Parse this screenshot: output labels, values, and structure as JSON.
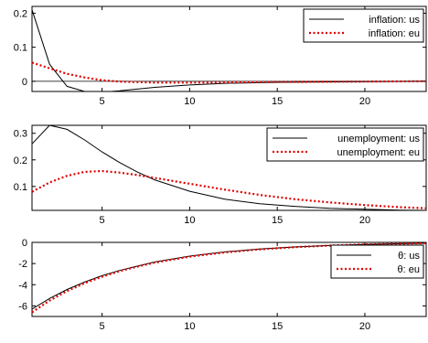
{
  "chart_data": [
    {
      "type": "line",
      "xlim": [
        1,
        23.5
      ],
      "ylim": [
        -0.03,
        0.22
      ],
      "xticks": [
        5,
        10,
        15,
        20
      ],
      "yticks": [
        0,
        0.1,
        0.2
      ],
      "ytick_labels": [
        "0",
        "0.1",
        "0.2"
      ],
      "zero_line": true,
      "legend": "top-right",
      "series": [
        {
          "name": "inflation: us",
          "color": "#000000",
          "style": "solid",
          "x": [
            1,
            2,
            3,
            4,
            5,
            6,
            8,
            10,
            12,
            15,
            20,
            23.5
          ],
          "values": [
            0.21,
            0.05,
            -0.015,
            -0.03,
            -0.032,
            -0.028,
            -0.018,
            -0.011,
            -0.006,
            -0.003,
            -0.001,
            0
          ]
        },
        {
          "name": "inflation: eu",
          "color": "#e00000",
          "style": "dotted",
          "x": [
            1,
            2,
            3,
            4,
            5,
            6,
            8,
            10,
            12,
            15,
            20,
            23.5
          ],
          "values": [
            0.055,
            0.038,
            0.022,
            0.011,
            0.003,
            -0.001,
            -0.004,
            -0.004,
            -0.003,
            -0.002,
            -0.001,
            0
          ]
        }
      ]
    },
    {
      "type": "line",
      "xlim": [
        1,
        23.5
      ],
      "ylim": [
        0.01,
        0.33
      ],
      "xticks": [
        5,
        10,
        15,
        20
      ],
      "yticks": [
        0.1,
        0.2,
        0.3
      ],
      "ytick_labels": [
        "0.1",
        "0.2",
        "0.3"
      ],
      "zero_line": false,
      "legend": "top-right",
      "series": [
        {
          "name": "unemployment: us",
          "color": "#000000",
          "style": "solid",
          "x": [
            1,
            2,
            3,
            4,
            5,
            6,
            7,
            8,
            10,
            12,
            14,
            16,
            18,
            20,
            22,
            23.5
          ],
          "values": [
            0.26,
            0.33,
            0.315,
            0.275,
            0.23,
            0.19,
            0.155,
            0.125,
            0.082,
            0.052,
            0.035,
            0.025,
            0.018,
            0.014,
            0.011,
            0.01
          ]
        },
        {
          "name": "unemployment: eu",
          "color": "#e00000",
          "style": "dotted",
          "x": [
            1,
            2,
            3,
            4,
            5,
            6,
            7,
            8,
            10,
            12,
            14,
            16,
            18,
            20,
            22,
            23.5
          ],
          "values": [
            0.08,
            0.115,
            0.14,
            0.155,
            0.158,
            0.152,
            0.143,
            0.132,
            0.11,
            0.088,
            0.068,
            0.052,
            0.04,
            0.03,
            0.022,
            0.018
          ]
        }
      ]
    },
    {
      "type": "line",
      "xlim": [
        1,
        23.5
      ],
      "ylim": [
        -7,
        0
      ],
      "xticks": [
        5,
        10,
        15,
        20
      ],
      "xtick_labels": [
        "5",
        "10",
        "15",
        "20"
      ],
      "yticks": [
        -6,
        -4,
        -2,
        0
      ],
      "ytick_labels": [
        "-6",
        "-4",
        "-2",
        "0"
      ],
      "zero_line": false,
      "legend": "top-right",
      "series": [
        {
          "name": "θ: us",
          "color": "#000000",
          "style": "solid",
          "x": [
            1,
            2,
            3,
            4,
            5,
            6,
            7,
            8,
            10,
            12,
            14,
            16,
            18,
            20,
            22,
            23.5
          ],
          "values": [
            -6.3,
            -5.3,
            -4.45,
            -3.75,
            -3.15,
            -2.65,
            -2.25,
            -1.85,
            -1.3,
            -0.9,
            -0.63,
            -0.43,
            -0.29,
            -0.19,
            -0.12,
            -0.08
          ]
        },
        {
          "name": "θ: eu",
          "color": "#e00000",
          "style": "dotted",
          "x": [
            1,
            2,
            3,
            4,
            5,
            6,
            7,
            8,
            10,
            12,
            14,
            16,
            18,
            20,
            22,
            23.5
          ],
          "values": [
            -6.6,
            -5.5,
            -4.6,
            -3.85,
            -3.25,
            -2.72,
            -2.3,
            -1.92,
            -1.35,
            -0.95,
            -0.66,
            -0.45,
            -0.3,
            -0.19,
            -0.12,
            -0.08
          ]
        }
      ]
    }
  ]
}
